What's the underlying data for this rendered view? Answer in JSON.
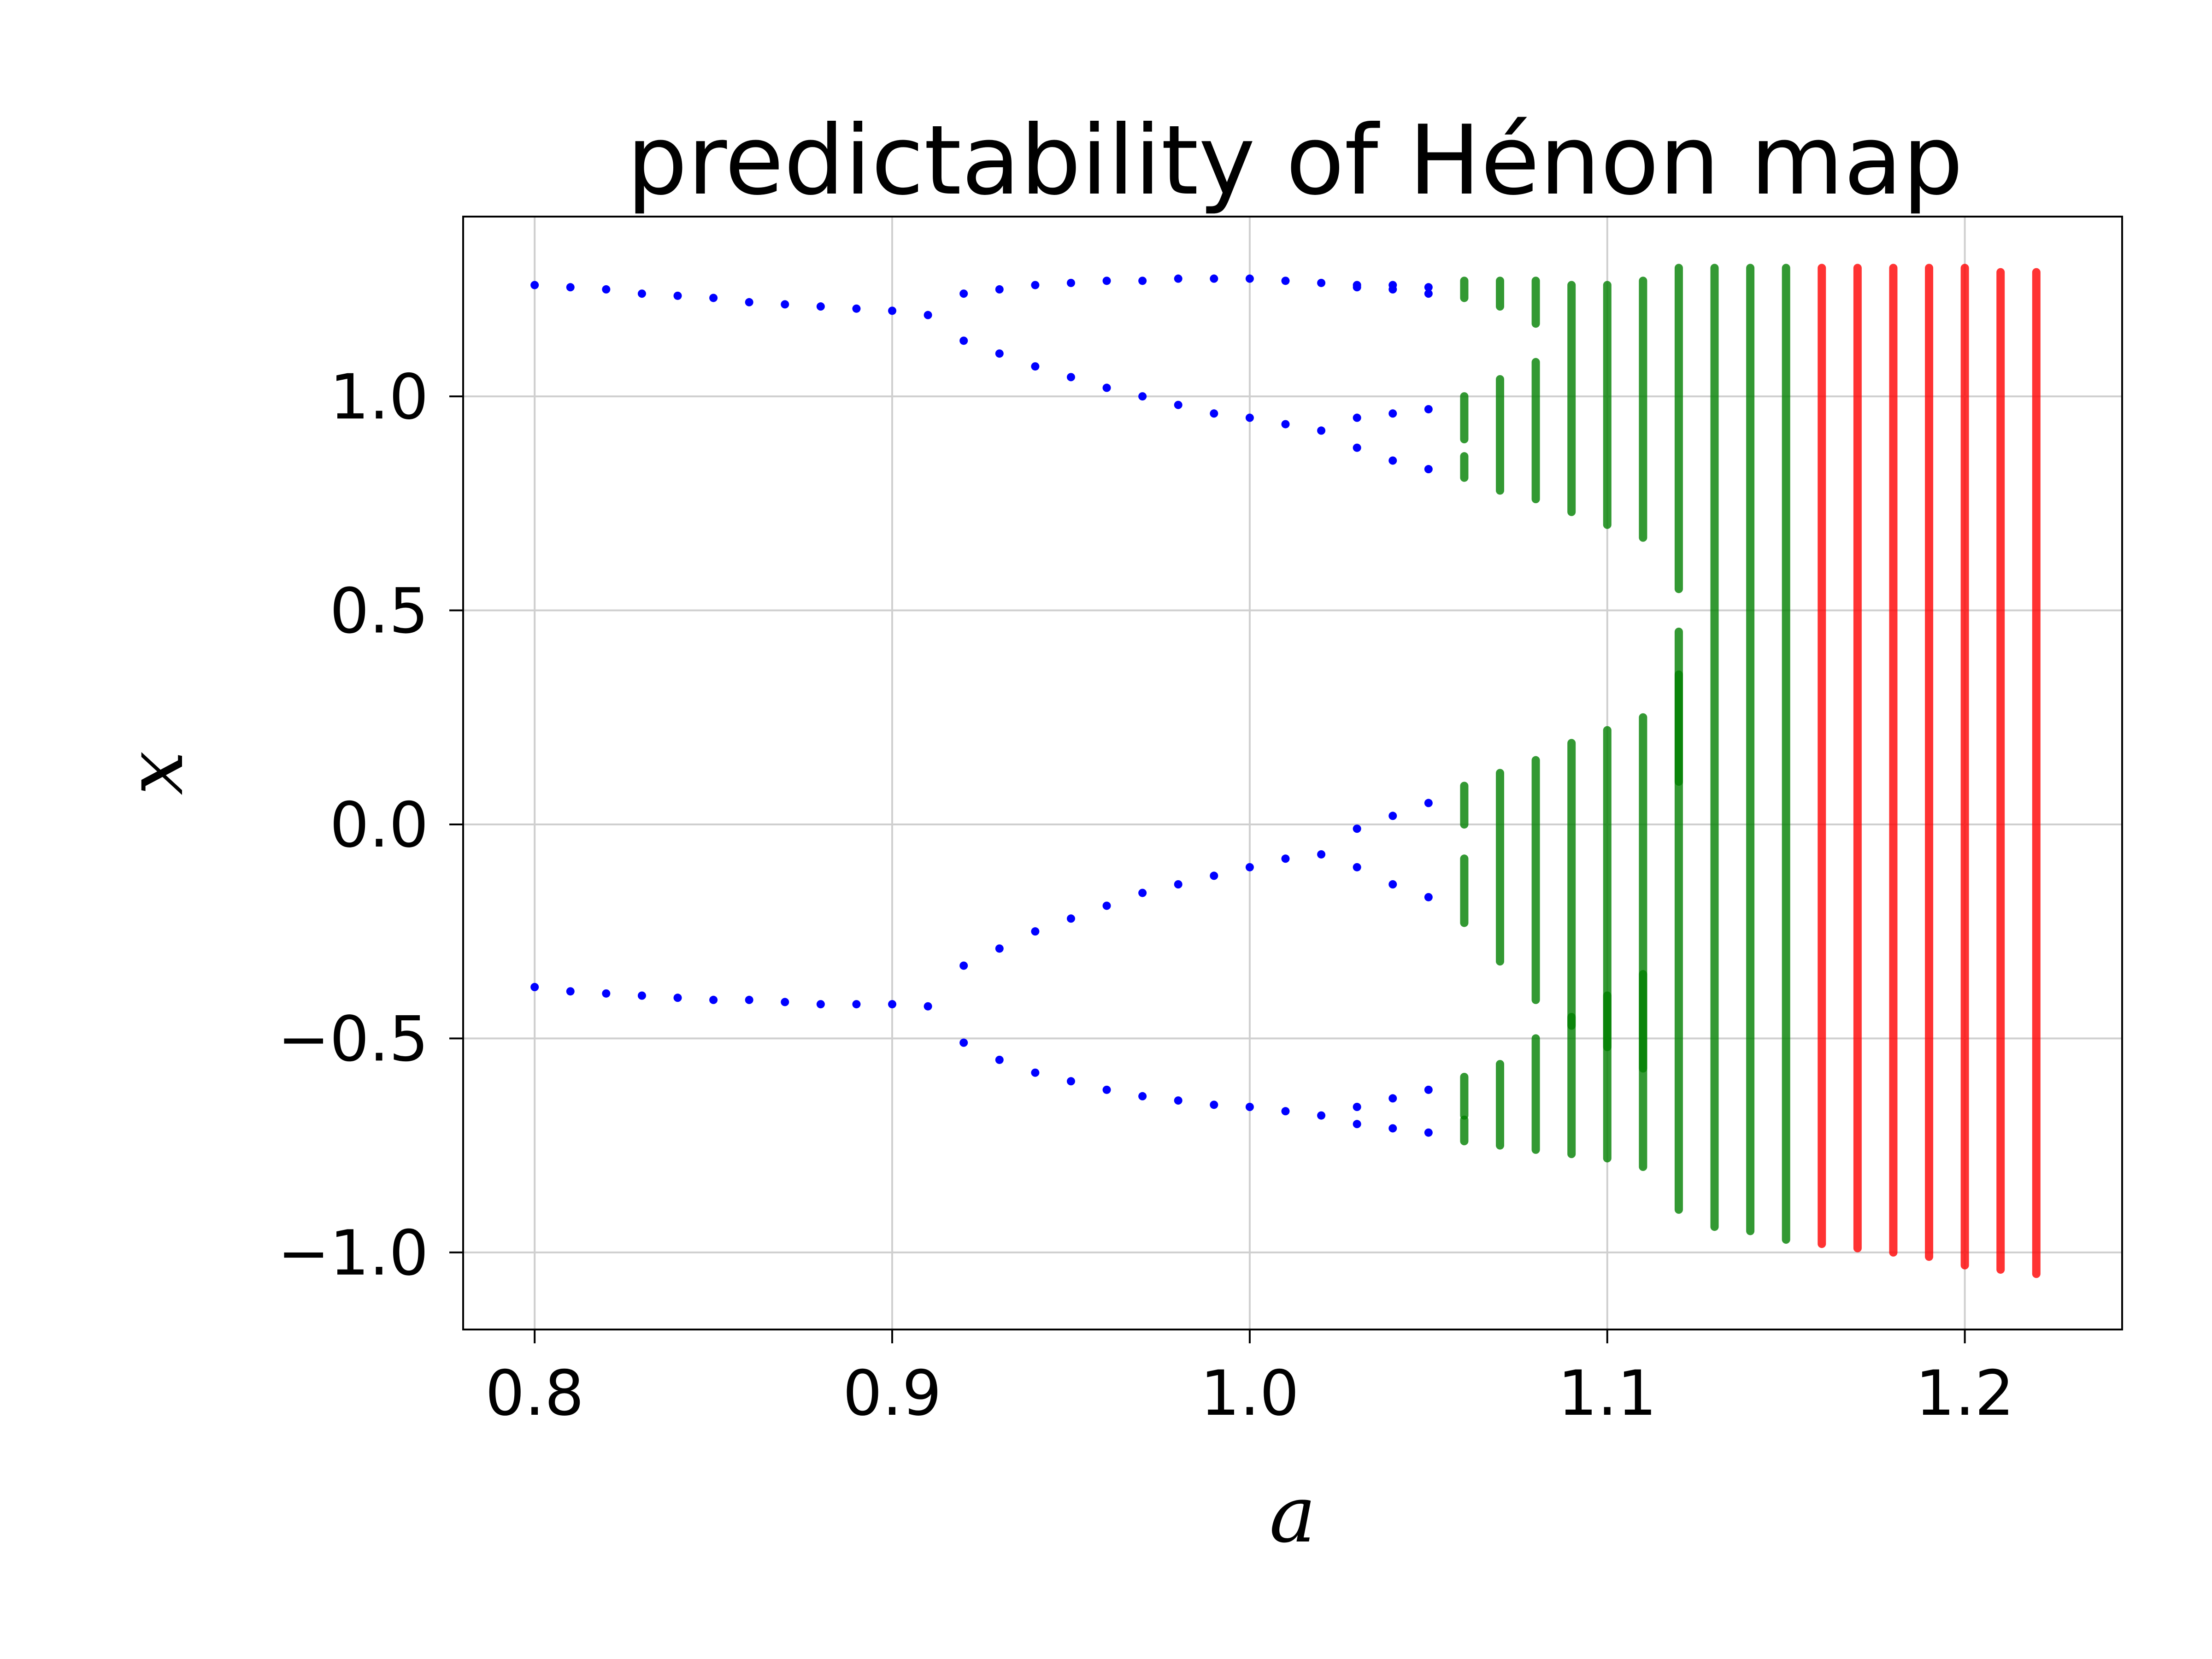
{
  "chart_data": {
    "type": "scatter",
    "title": "predictability of Hénon map",
    "xlabel": "a",
    "ylabel": "x",
    "xlim": [
      0.78,
      1.244
    ],
    "ylim": [
      -1.18,
      1.42
    ],
    "xticks": [
      0.8,
      0.9,
      1.0,
      1.1,
      1.2
    ],
    "xtick_labels": [
      "0.8",
      "0.9",
      "1.0",
      "1.1",
      "1.2"
    ],
    "yticks": [
      -1.0,
      -0.5,
      0.0,
      0.5,
      1.0
    ],
    "ytick_labels": [
      "−1.0",
      "−0.5",
      "0.0",
      "0.5",
      "1.0"
    ],
    "grid": true,
    "colors": {
      "periodic": "#0000ff",
      "predictable": "#008000",
      "unpredictable": "#ff0000"
    },
    "series": [
      {
        "color": "periodic",
        "points": [
          [
            0.8,
            1.26
          ],
          [
            0.8,
            -0.38
          ],
          [
            0.81,
            1.255
          ],
          [
            0.81,
            -0.39
          ],
          [
            0.82,
            1.25
          ],
          [
            0.82,
            -0.395
          ],
          [
            0.83,
            1.24
          ],
          [
            0.83,
            -0.4
          ],
          [
            0.84,
            1.235
          ],
          [
            0.84,
            -0.405
          ],
          [
            0.85,
            1.23
          ],
          [
            0.85,
            -0.41
          ],
          [
            0.86,
            1.22
          ],
          [
            0.86,
            -0.41
          ],
          [
            0.87,
            1.215
          ],
          [
            0.87,
            -0.415
          ],
          [
            0.88,
            1.21
          ],
          [
            0.88,
            -0.42
          ],
          [
            0.89,
            1.205
          ],
          [
            0.89,
            -0.42
          ],
          [
            0.9,
            1.2
          ],
          [
            0.9,
            -0.42
          ],
          [
            0.91,
            1.19
          ],
          [
            0.91,
            -0.425
          ],
          [
            0.92,
            1.24
          ],
          [
            0.92,
            1.13
          ],
          [
            0.92,
            -0.33
          ],
          [
            0.92,
            -0.51
          ],
          [
            0.93,
            1.25
          ],
          [
            0.93,
            1.1
          ],
          [
            0.93,
            -0.29
          ],
          [
            0.93,
            -0.55
          ],
          [
            0.94,
            1.26
          ],
          [
            0.94,
            1.07
          ],
          [
            0.94,
            -0.25
          ],
          [
            0.94,
            -0.58
          ],
          [
            0.95,
            1.265
          ],
          [
            0.95,
            1.045
          ],
          [
            0.95,
            -0.22
          ],
          [
            0.95,
            -0.6
          ],
          [
            0.96,
            1.27
          ],
          [
            0.96,
            1.02
          ],
          [
            0.96,
            -0.19
          ],
          [
            0.96,
            -0.62
          ],
          [
            0.97,
            1.27
          ],
          [
            0.97,
            1.0
          ],
          [
            0.97,
            -0.16
          ],
          [
            0.97,
            -0.635
          ],
          [
            0.98,
            1.275
          ],
          [
            0.98,
            0.98
          ],
          [
            0.98,
            -0.14
          ],
          [
            0.98,
            -0.645
          ],
          [
            0.99,
            1.275
          ],
          [
            0.99,
            0.96
          ],
          [
            0.99,
            -0.12
          ],
          [
            0.99,
            -0.655
          ],
          [
            1.0,
            1.275
          ],
          [
            1.0,
            0.95
          ],
          [
            1.0,
            -0.1
          ],
          [
            1.0,
            -0.66
          ],
          [
            1.01,
            1.27
          ],
          [
            1.01,
            0.935
          ],
          [
            1.01,
            -0.08
          ],
          [
            1.01,
            -0.67
          ],
          [
            1.02,
            1.265
          ],
          [
            1.02,
            0.92
          ],
          [
            1.02,
            -0.07
          ],
          [
            1.02,
            -0.68
          ],
          [
            1.03,
            1.26
          ],
          [
            1.03,
            1.255
          ],
          [
            1.03,
            0.95
          ],
          [
            1.03,
            0.88
          ],
          [
            1.03,
            -0.01
          ],
          [
            1.03,
            -0.1
          ],
          [
            1.03,
            -0.66
          ],
          [
            1.03,
            -0.7
          ],
          [
            1.04,
            1.26
          ],
          [
            1.04,
            1.25
          ],
          [
            1.04,
            0.96
          ],
          [
            1.04,
            0.85
          ],
          [
            1.04,
            0.02
          ],
          [
            1.04,
            -0.14
          ],
          [
            1.04,
            -0.64
          ],
          [
            1.04,
            -0.71
          ],
          [
            1.05,
            1.255
          ],
          [
            1.05,
            1.24
          ],
          [
            1.05,
            0.97
          ],
          [
            1.05,
            0.83
          ],
          [
            1.05,
            0.05
          ],
          [
            1.05,
            -0.17
          ],
          [
            1.05,
            -0.62
          ],
          [
            1.05,
            -0.72
          ]
        ]
      },
      {
        "color": "predictable",
        "segments": [
          [
            1.06,
            1.23,
            1.27
          ],
          [
            1.06,
            0.9,
            1.0
          ],
          [
            1.06,
            0.81,
            0.86
          ],
          [
            1.06,
            0.0,
            0.09
          ],
          [
            1.06,
            -0.23,
            -0.08
          ],
          [
            1.06,
            -0.68,
            -0.59
          ],
          [
            1.06,
            -0.74,
            -0.69
          ],
          [
            1.07,
            1.21,
            1.27
          ],
          [
            1.07,
            0.78,
            1.04
          ],
          [
            1.07,
            -0.32,
            0.12
          ],
          [
            1.07,
            -0.75,
            -0.56
          ],
          [
            1.08,
            1.17,
            1.27
          ],
          [
            1.08,
            0.76,
            1.08
          ],
          [
            1.08,
            -0.41,
            0.15
          ],
          [
            1.08,
            -0.76,
            -0.5
          ],
          [
            1.09,
            0.73,
            1.26
          ],
          [
            1.09,
            -0.47,
            0.19
          ],
          [
            1.09,
            -0.77,
            -0.45
          ],
          [
            1.1,
            0.7,
            1.26
          ],
          [
            1.1,
            -0.52,
            0.22
          ],
          [
            1.1,
            -0.78,
            -0.4
          ],
          [
            1.11,
            0.67,
            1.27
          ],
          [
            1.11,
            -0.57,
            0.25
          ],
          [
            1.11,
            -0.8,
            -0.35
          ],
          [
            1.12,
            0.55,
            1.3
          ],
          [
            1.12,
            0.1,
            0.45
          ],
          [
            1.12,
            -0.9,
            0.35
          ],
          [
            1.13,
            -0.94,
            1.3
          ],
          [
            1.14,
            -0.95,
            1.3
          ],
          [
            1.15,
            -0.97,
            1.3
          ]
        ]
      },
      {
        "color": "unpredictable",
        "segments": [
          [
            1.16,
            -0.98,
            1.3
          ],
          [
            1.17,
            -0.99,
            1.3
          ],
          [
            1.18,
            -1.0,
            1.3
          ],
          [
            1.19,
            -1.01,
            1.3
          ],
          [
            1.2,
            -1.03,
            1.3
          ],
          [
            1.21,
            -1.04,
            1.29
          ],
          [
            1.22,
            -1.05,
            1.29
          ]
        ]
      }
    ]
  }
}
